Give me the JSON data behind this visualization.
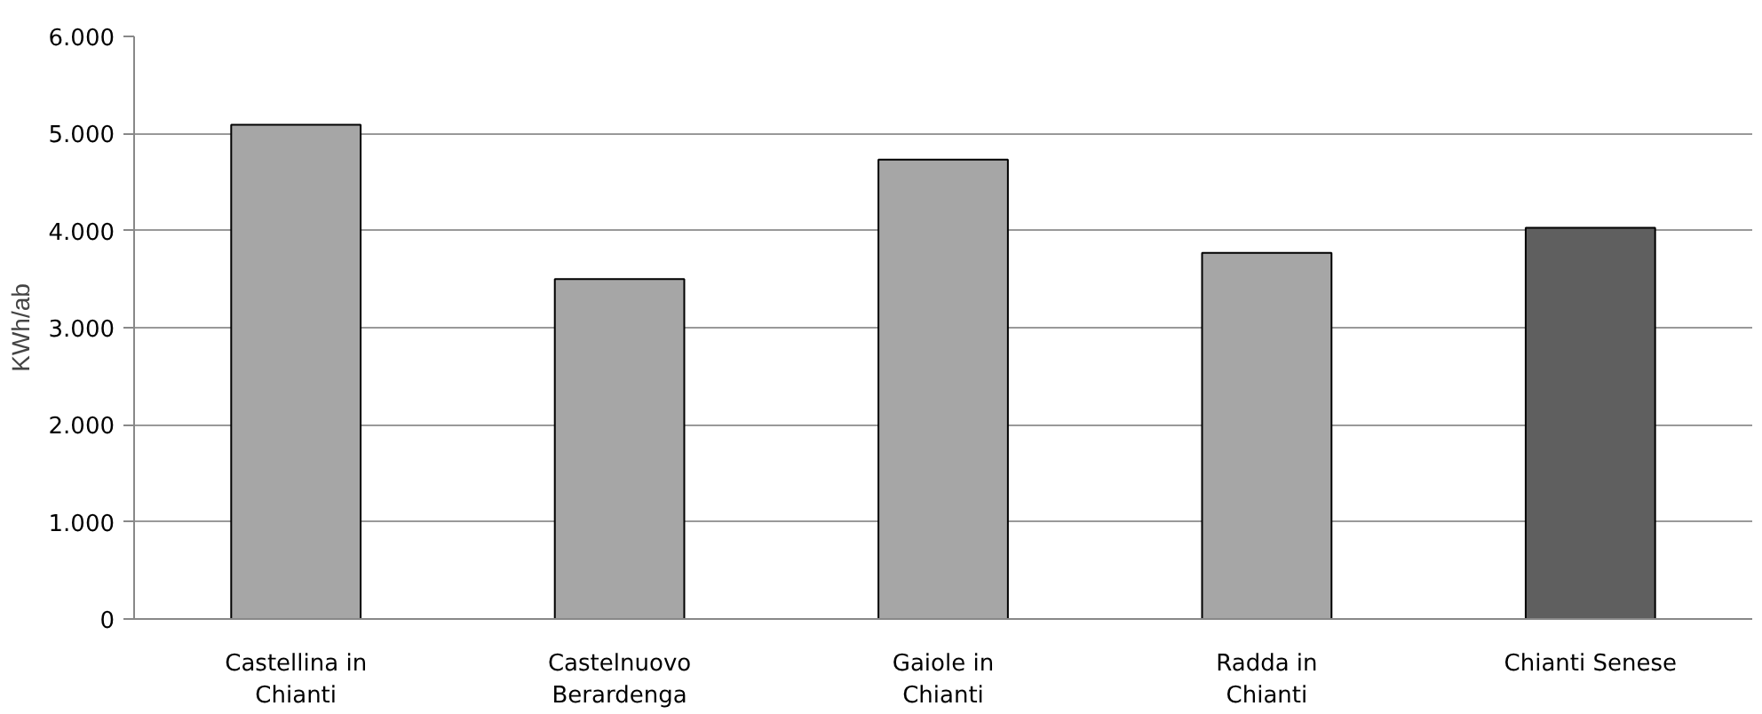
{
  "chart_data": {
    "type": "bar",
    "ylabel": "KWh/ab",
    "categories": [
      "Castellina in\nChianti",
      "Castelnuovo\nBerardenga",
      "Gaiole in\nChianti",
      "Radda in\nChianti",
      "Chianti Senese"
    ],
    "values": [
      5090,
      3500,
      4730,
      3770,
      4030
    ],
    "colors": [
      "#a6a6a6",
      "#a6a6a6",
      "#a6a6a6",
      "#a6a6a6",
      "#5f5f5f"
    ],
    "ylim": [
      0,
      6000
    ],
    "yticks": [
      0,
      {
        "value": 1000,
        "label": "1.000"
      },
      {
        "value": 2000,
        "label": "2.000"
      },
      {
        "value": 3000,
        "label": "3.000"
      },
      {
        "value": 4000,
        "label": "4.000"
      },
      {
        "value": 5000,
        "label": "5.000"
      },
      {
        "value": 6000,
        "label": "6.000"
      }
    ],
    "grid": "y"
  }
}
